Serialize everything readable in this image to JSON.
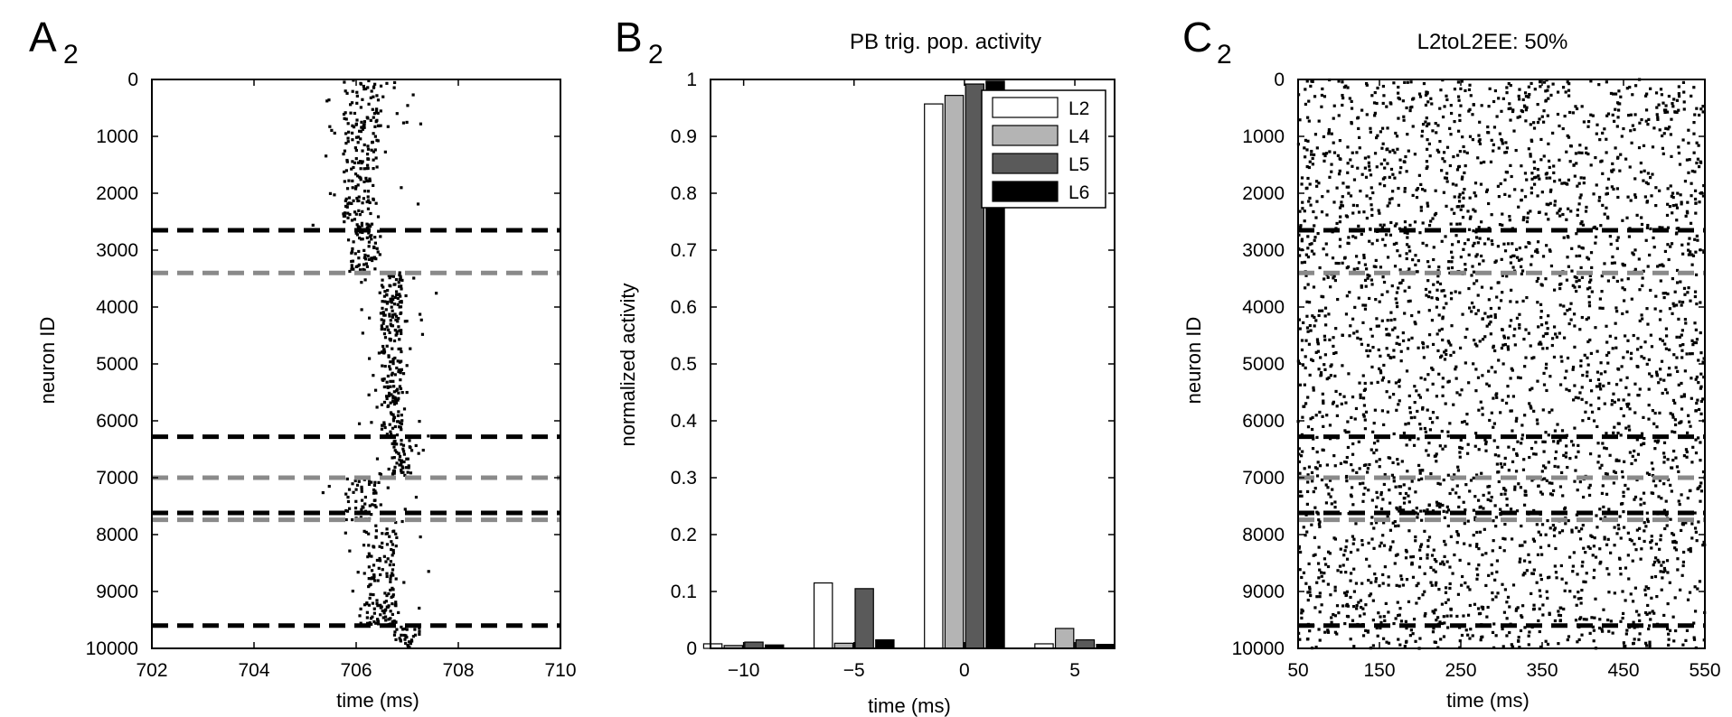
{
  "colors": {
    "black_line": "#000000",
    "gray_line": "#8a8a8a",
    "L2": "#ffffff",
    "L4": "#b4b4b4",
    "L5": "#5a5a5a",
    "L6": "#000000"
  },
  "panels": {
    "A2": {
      "letter": "A",
      "sub": "2"
    },
    "B2": {
      "letter": "B",
      "sub": "2",
      "title": "PB trig. pop. activity"
    },
    "C2": {
      "letter": "C",
      "sub": "2",
      "title": "L2toL2EE: 50%"
    }
  },
  "chart_data": [
    {
      "type": "scatter",
      "panel": "A2",
      "title": "",
      "xlabel": "time (ms)",
      "ylabel": "neuron ID",
      "xlim": [
        702,
        710
      ],
      "ylim": [
        0,
        10000
      ],
      "y_inverted": true,
      "xticks": [
        "702",
        "704",
        "706",
        "708",
        "710"
      ],
      "yticks": [
        "0",
        "1000",
        "2000",
        "3000",
        "4000",
        "5000",
        "6000",
        "7000",
        "8000",
        "9000",
        "10000"
      ],
      "boundaries": [
        {
          "y": 2650,
          "color": "black"
        },
        {
          "y": 3400,
          "color": "gray"
        },
        {
          "y": 6280,
          "color": "black"
        },
        {
          "y": 7000,
          "color": "gray"
        },
        {
          "y": 7620,
          "color": "black"
        },
        {
          "y": 7740,
          "color": "gray"
        },
        {
          "y": 9600,
          "color": "black"
        }
      ],
      "bursts": [
        {
          "y0": 0,
          "y1": 2650,
          "t_center": 706.1,
          "t_core_halfwidth": 0.35,
          "t_spread": 1.1
        },
        {
          "y0": 2650,
          "y1": 3400,
          "t_center": 706.2,
          "t_core_halfwidth": 0.3,
          "t_spread": 0.6
        },
        {
          "y0": 3400,
          "y1": 6280,
          "t_center": 706.7,
          "t_core_halfwidth": 0.2,
          "t_spread": 0.7
        },
        {
          "y0": 6280,
          "y1": 7000,
          "t_center": 706.9,
          "t_core_halfwidth": 0.2,
          "t_spread": 0.6
        },
        {
          "y0": 7000,
          "y1": 7740,
          "t_center": 706.1,
          "t_core_halfwidth": 0.3,
          "t_spread": 1.2
        },
        {
          "y0": 7740,
          "y1": 9600,
          "t_center": 706.5,
          "t_core_halfwidth": 0.3,
          "t_spread": 0.9
        },
        {
          "y0": 9600,
          "y1": 10000,
          "t_center": 707.0,
          "t_core_halfwidth": 0.25,
          "t_spread": 0.4
        }
      ]
    },
    {
      "type": "bar",
      "panel": "B2",
      "title": "PB trig. pop. activity",
      "xlabel": "time (ms)",
      "ylabel": "normalized activity",
      "xlim": [
        -11.5,
        6.8
      ],
      "ylim": [
        0,
        1
      ],
      "xticks": [
        "−10",
        "−5",
        "0",
        "5"
      ],
      "xtick_values": [
        -10,
        -5,
        0,
        5
      ],
      "yticks": [
        "0",
        "0.1",
        "0.2",
        "0.3",
        "0.4",
        "0.5",
        "0.6",
        "0.7",
        "0.8",
        "0.9",
        "1"
      ],
      "bin_centers": [
        -10,
        -5,
        0,
        5
      ],
      "legend": {
        "position": "top-right",
        "entries": [
          "L2",
          "L4",
          "L5",
          "L6"
        ]
      },
      "series": [
        {
          "name": "L2",
          "values": [
            0.008,
            0.115,
            0.957,
            0.008
          ]
        },
        {
          "name": "L4",
          "values": [
            0.005,
            0.009,
            0.972,
            0.035
          ]
        },
        {
          "name": "L5",
          "values": [
            0.011,
            0.105,
            0.992,
            0.015
          ]
        },
        {
          "name": "L6",
          "values": [
            0.006,
            0.015,
            0.997,
            0.007
          ]
        }
      ]
    },
    {
      "type": "scatter",
      "panel": "C2",
      "title": "L2toL2EE: 50%",
      "xlabel": "time (ms)",
      "ylabel": "neuron ID",
      "xlim": [
        50,
        550
      ],
      "ylim": [
        0,
        10000
      ],
      "y_inverted": true,
      "xticks": [
        "50",
        "150",
        "250",
        "350",
        "450",
        "550"
      ],
      "yticks": [
        "0",
        "1000",
        "2000",
        "3000",
        "4000",
        "5000",
        "6000",
        "7000",
        "8000",
        "9000",
        "10000"
      ],
      "boundaries": [
        {
          "y": 2650,
          "color": "black"
        },
        {
          "y": 3400,
          "color": "gray"
        },
        {
          "y": 6280,
          "color": "black"
        },
        {
          "y": 7000,
          "color": "gray"
        },
        {
          "y": 7620,
          "color": "black"
        },
        {
          "y": 7740,
          "color": "gray"
        },
        {
          "y": 9600,
          "color": "black"
        }
      ],
      "approx_spike_count": 3200
    }
  ]
}
